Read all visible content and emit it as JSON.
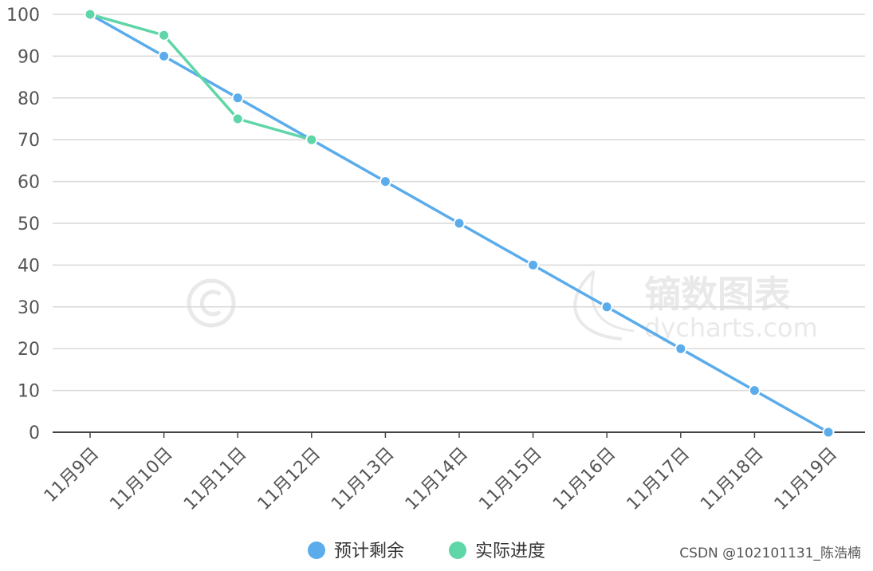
{
  "chart_data": {
    "type": "line",
    "categories": [
      "11月9日",
      "11月10日",
      "11月11日",
      "11月12日",
      "11月13日",
      "11月14日",
      "11月15日",
      "11月16日",
      "11月17日",
      "11月18日",
      "11月19日"
    ],
    "series": [
      {
        "name": "预计剩余",
        "color": "#5aaceb",
        "values": [
          100,
          90,
          80,
          70,
          60,
          50,
          40,
          30,
          20,
          10,
          0
        ]
      },
      {
        "name": "实际进度",
        "color": "#5fd6a7",
        "values": [
          100,
          95,
          75,
          70,
          null,
          null,
          null,
          null,
          null,
          null,
          null
        ]
      }
    ],
    "ylim": [
      0,
      100
    ],
    "yticks": [
      0,
      10,
      20,
      30,
      40,
      50,
      60,
      70,
      80,
      90,
      100
    ],
    "grid": true,
    "legend_position": "bottom-center",
    "xtick_rotation": -45
  },
  "watermark": {
    "brand_text": "镝数图表",
    "site_text": "dycharts.com"
  },
  "credit": "CSDN @102101131_陈浩楠"
}
